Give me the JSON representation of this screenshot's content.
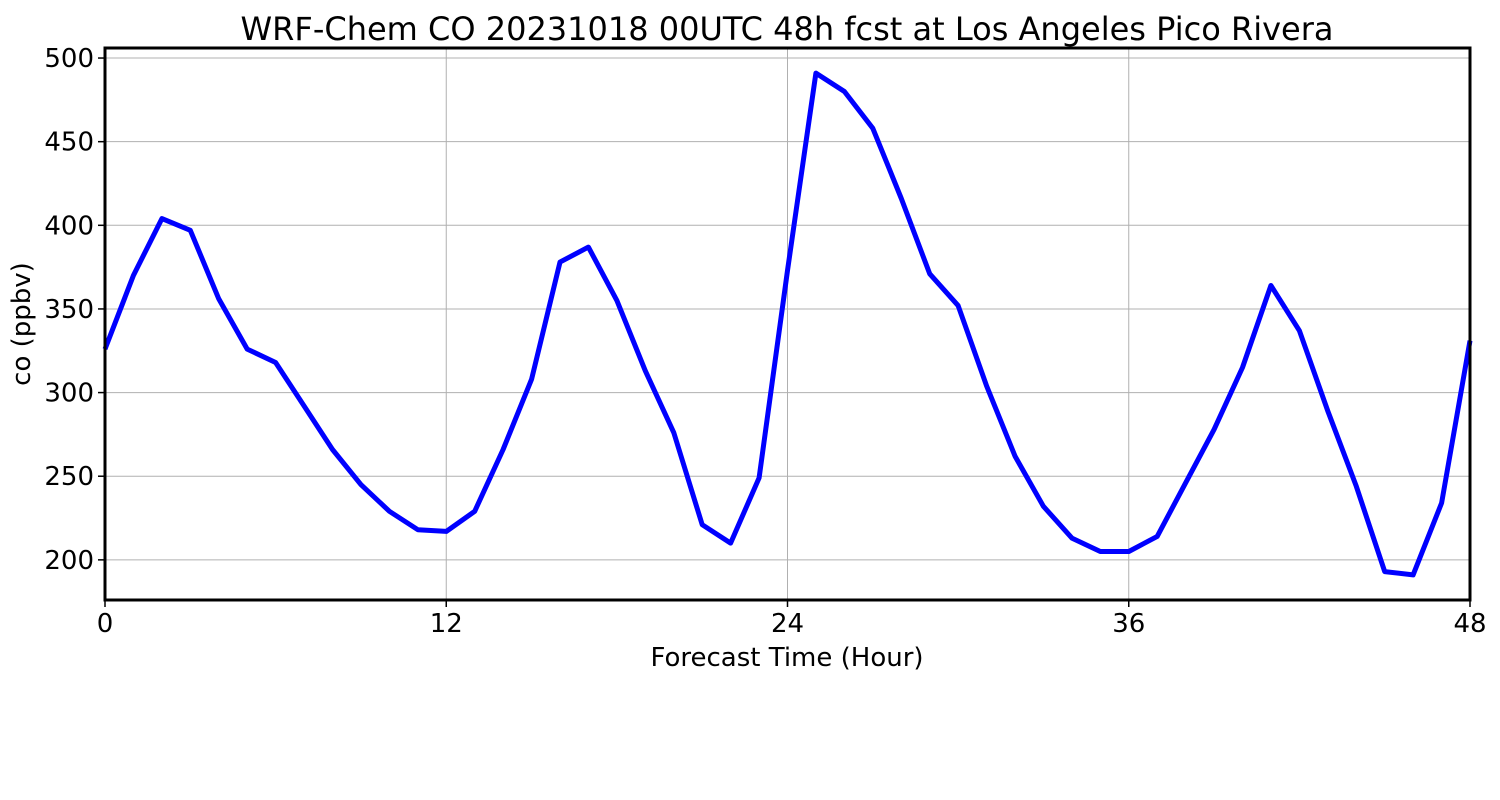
{
  "chart_data": {
    "type": "line",
    "title": "WRF-Chem CO  20231018 00UTC 48h fcst at Los Angeles Pico Rivera",
    "xlabel": "Forecast Time (Hour)",
    "ylabel": "co  (ppbv)",
    "xlim": [
      0,
      48
    ],
    "ylim": [
      176,
      506
    ],
    "xticks": [
      0,
      12,
      24,
      36,
      48
    ],
    "yticks": [
      200,
      250,
      300,
      350,
      400,
      450,
      500
    ],
    "grid": true,
    "series": [
      {
        "color": "#0000ff",
        "x": [
          0,
          1,
          2,
          3,
          4,
          5,
          6,
          7,
          8,
          9,
          10,
          11,
          12,
          13,
          14,
          15,
          16,
          17,
          18,
          19,
          20,
          21,
          22,
          23,
          24,
          25,
          26,
          27,
          28,
          29,
          30,
          31,
          32,
          33,
          34,
          35,
          36,
          37,
          38,
          39,
          40,
          41,
          42,
          43,
          44,
          45,
          46,
          47,
          48
        ],
        "values": [
          326,
          370,
          404,
          397,
          356,
          326,
          318,
          292,
          266,
          245,
          229,
          218,
          217,
          229,
          266,
          308,
          378,
          387,
          355,
          313,
          276,
          221,
          210,
          249,
          373,
          491,
          480,
          458,
          416,
          371,
          352,
          304,
          262,
          232,
          213,
          205,
          205,
          214,
          246,
          278,
          315,
          364,
          337,
          289,
          244,
          193,
          191,
          234,
          331
        ]
      }
    ]
  }
}
